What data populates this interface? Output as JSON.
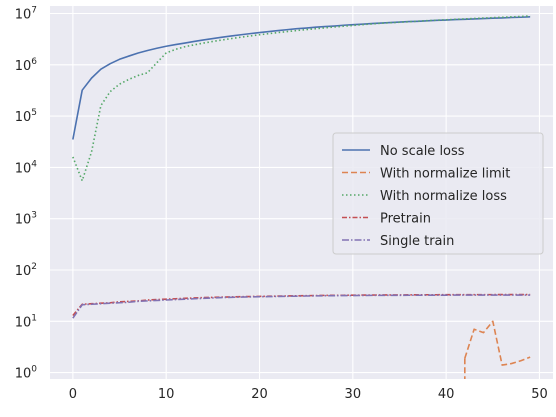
{
  "chart_data": {
    "type": "line",
    "title": "",
    "xlabel": "",
    "ylabel": "",
    "yscale": "log",
    "xlim": [
      -2.45,
      51.45
    ],
    "ylim": [
      0.75,
      14000000
    ],
    "xticks": [
      0,
      10,
      20,
      30,
      40,
      50
    ],
    "xtick_labels": [
      "0",
      "10",
      "20",
      "30",
      "40",
      "50"
    ],
    "yticks": [
      1,
      10,
      100,
      1000,
      10000,
      100000,
      1000000,
      10000000
    ],
    "ytick_labels": [
      {
        "base": "10",
        "exp": "0"
      },
      {
        "base": "10",
        "exp": "1"
      },
      {
        "base": "10",
        "exp": "2"
      },
      {
        "base": "10",
        "exp": "3"
      },
      {
        "base": "10",
        "exp": "4"
      },
      {
        "base": "10",
        "exp": "5"
      },
      {
        "base": "10",
        "exp": "6"
      },
      {
        "base": "10",
        "exp": "7"
      }
    ],
    "grid": true,
    "legend_position": "center-right",
    "series": [
      {
        "name": "No scale loss",
        "color": "#4c72b0",
        "dash": "solid",
        "x": [
          0,
          1,
          2,
          3,
          4,
          5,
          6,
          7,
          8,
          9,
          10,
          11,
          12,
          13,
          14,
          15,
          16,
          17,
          18,
          19,
          20,
          21,
          22,
          23,
          24,
          25,
          26,
          27,
          28,
          29,
          30,
          31,
          32,
          33,
          34,
          35,
          36,
          37,
          38,
          39,
          40,
          41,
          42,
          43,
          44,
          45,
          46,
          47,
          48,
          49
        ],
        "y": [
          35000,
          320000,
          550000,
          820000,
          1050000,
          1280000,
          1480000,
          1700000,
          1900000,
          2100000,
          2300000,
          2480000,
          2650000,
          2850000,
          3050000,
          3250000,
          3450000,
          3650000,
          3850000,
          4050000,
          4250000,
          4450000,
          4650000,
          4850000,
          5050000,
          5200000,
          5400000,
          5550000,
          5700000,
          5900000,
          6050000,
          6200000,
          6350000,
          6500000,
          6650000,
          6800000,
          6950000,
          7050000,
          7200000,
          7350000,
          7450000,
          7600000,
          7700000,
          7850000,
          7950000,
          8100000,
          8200000,
          8350000,
          8450000,
          8600000
        ]
      },
      {
        "name": "With normalize limit",
        "color": "#dd8452",
        "dash": "dashed",
        "x": [
          42,
          43,
          44,
          45,
          46,
          47,
          48,
          49
        ],
        "y": [
          1.9,
          7.0,
          6.0,
          10.0,
          1.4,
          1.5,
          1.7,
          2.0
        ]
      },
      {
        "name": "With normalize loss",
        "color": "#55a868",
        "dash": "dotted",
        "x": [
          0,
          1,
          2,
          3,
          4,
          5,
          6,
          7,
          8,
          9,
          10,
          11,
          12,
          13,
          14,
          15,
          16,
          17,
          18,
          19,
          20,
          21,
          22,
          23,
          24,
          25,
          26,
          27,
          28,
          29,
          30,
          31,
          32,
          33,
          34,
          35,
          36,
          37,
          38,
          39,
          40,
          41,
          42,
          43,
          44,
          45,
          46,
          47,
          48,
          49
        ],
        "y": [
          16000,
          5500,
          20000,
          160000,
          300000,
          420000,
          520000,
          620000,
          700000,
          1100000,
          1700000,
          2000000,
          2250000,
          2450000,
          2650000,
          2850000,
          3050000,
          3250000,
          3450000,
          3650000,
          3850000,
          4050000,
          4250000,
          4450000,
          4650000,
          4850000,
          5050000,
          5250000,
          5450000,
          5650000,
          5850000,
          6050000,
          6250000,
          6450000,
          6600000,
          6750000,
          6900000,
          7100000,
          7250000,
          7400000,
          7550000,
          7700000,
          7850000,
          8000000,
          8150000,
          8300000,
          8450000,
          8600000,
          8750000,
          8950000
        ]
      },
      {
        "name": "Pretrain",
        "color": "#c44e52",
        "dash": "dashdot-red",
        "x": [
          0,
          1,
          2,
          3,
          4,
          5,
          6,
          7,
          8,
          9,
          10,
          11,
          12,
          13,
          14,
          15,
          16,
          17,
          18,
          19,
          20,
          21,
          22,
          23,
          24,
          25,
          26,
          27,
          28,
          29,
          30,
          31,
          32,
          33,
          34,
          35,
          36,
          37,
          38,
          39,
          40,
          41,
          42,
          43,
          44,
          45,
          46,
          47,
          48,
          49
        ],
        "y": [
          13,
          21.5,
          22,
          22.5,
          23,
          24,
          24.5,
          25,
          26,
          26.5,
          27,
          27.5,
          28,
          28.5,
          29,
          29.3,
          29.6,
          29.9,
          30.2,
          30.4,
          30.6,
          30.8,
          31,
          31.2,
          31.4,
          31.6,
          31.8,
          32,
          32.1,
          32.2,
          32.3,
          32.4,
          32.5,
          32.6,
          32.7,
          32.7,
          32.8,
          32.8,
          32.9,
          32.9,
          33,
          33,
          33,
          33.1,
          33.1,
          33.1,
          33.2,
          33.2,
          33.2,
          33.2
        ]
      },
      {
        "name": "Single train",
        "color": "#8172b3",
        "dash": "dashdot",
        "x": [
          0,
          1,
          2,
          3,
          4,
          5,
          6,
          7,
          8,
          9,
          10,
          11,
          12,
          13,
          14,
          15,
          16,
          17,
          18,
          19,
          20,
          21,
          22,
          23,
          24,
          25,
          26,
          27,
          28,
          29,
          30,
          31,
          32,
          33,
          34,
          35,
          36,
          37,
          38,
          39,
          40,
          41,
          42,
          43,
          44,
          45,
          46,
          47,
          48,
          49
        ],
        "y": [
          11.5,
          21,
          21.5,
          22,
          22.5,
          23,
          23.5,
          24.5,
          25,
          25.5,
          26,
          26.5,
          27,
          27.5,
          28,
          28.5,
          29,
          29.3,
          29.6,
          29.9,
          30.1,
          30.3,
          30.5,
          30.7,
          30.9,
          31.1,
          31.3,
          31.5,
          31.6,
          31.7,
          31.8,
          31.9,
          32,
          32,
          32.1,
          32.1,
          32.2,
          32.2,
          32.3,
          32.3,
          32.3,
          32.4,
          32.4,
          32.4,
          32.5,
          32.5,
          32.5,
          32.5,
          32.5,
          32.5
        ]
      }
    ]
  }
}
